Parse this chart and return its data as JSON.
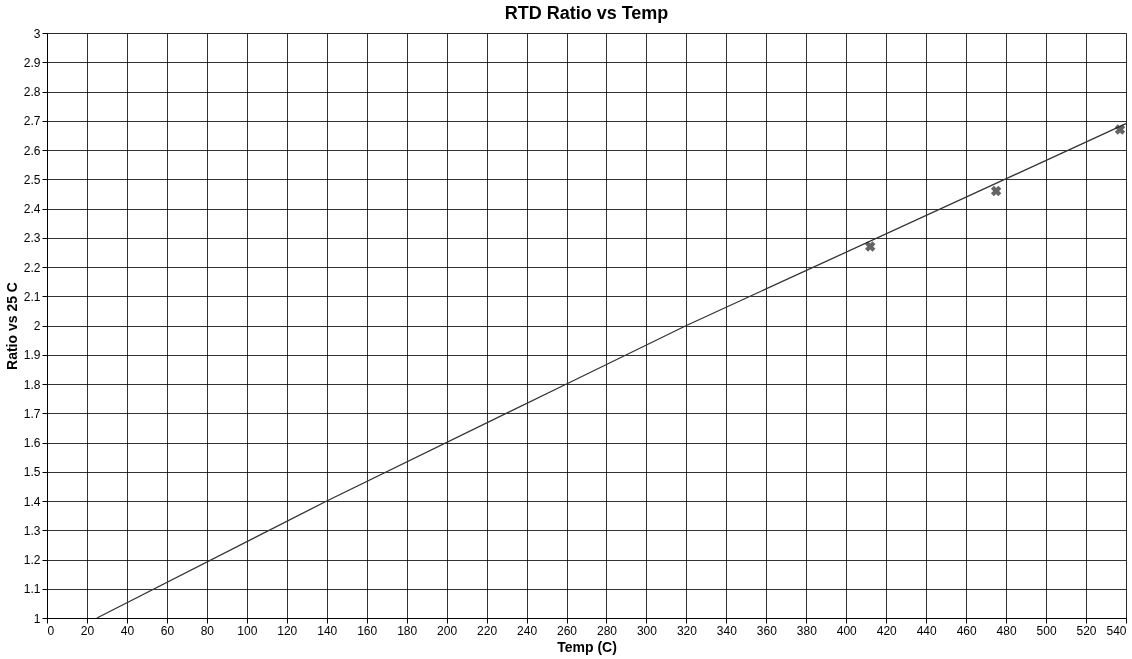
{
  "chart_data": {
    "type": "line",
    "title": "RTD Ratio vs Temp",
    "xlabel": "Temp (C)",
    "ylabel": "Ratio vs 25 C",
    "series": [
      {
        "color": "#333333",
        "marker": "none",
        "x": [
          25,
          140,
          260,
          320,
          540
        ],
        "values": [
          1.0,
          1.4,
          1.8,
          2.0,
          2.69
        ]
      },
      {
        "type": "scatter",
        "color": "#222222",
        "marker": "cross",
        "x": [
          412,
          475,
          537
        ],
        "values": [
          2.27,
          2.46,
          2.67
        ]
      }
    ],
    "xlim": [
      0,
      540
    ],
    "xticks": [
      0,
      20,
      40,
      60,
      80,
      100,
      120,
      140,
      160,
      180,
      200,
      220,
      240,
      260,
      280,
      300,
      320,
      340,
      360,
      380,
      400,
      420,
      440,
      460,
      480,
      500,
      520,
      540
    ],
    "ylim": [
      1,
      3
    ],
    "yticks": [
      1,
      1.1,
      1.2,
      1.3,
      1.4,
      1.5,
      1.6,
      1.7,
      1.8,
      1.9,
      2,
      2.1,
      2.2,
      2.3,
      2.4,
      2.5,
      2.6,
      2.7,
      2.8,
      2.9,
      3
    ],
    "grid": true
  }
}
